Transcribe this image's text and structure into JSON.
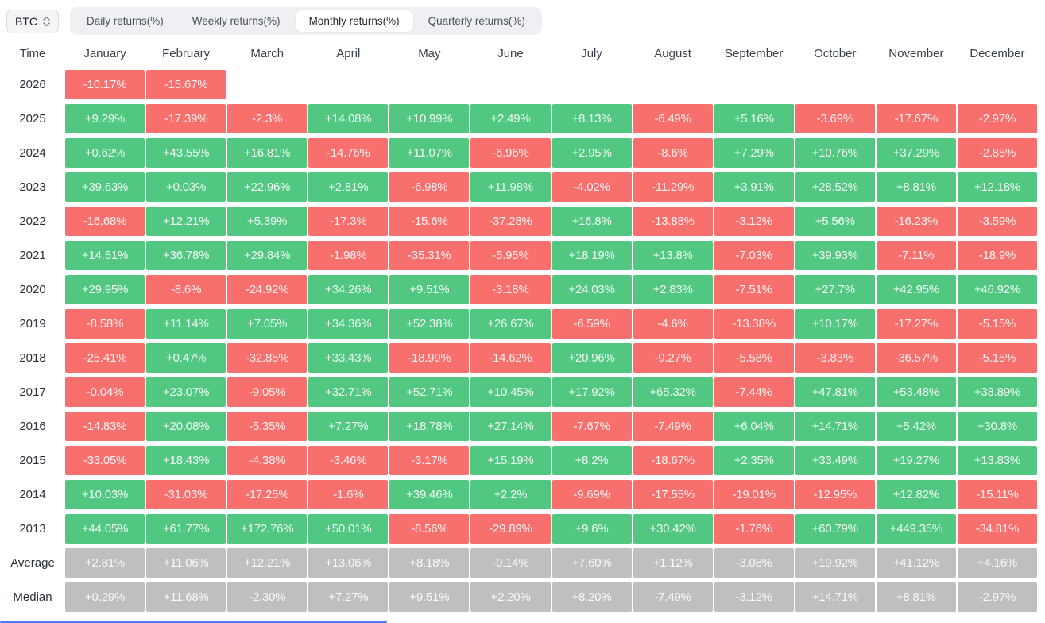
{
  "selector": {
    "label": "BTC",
    "icon": "updown-chevron-icon"
  },
  "tabs": [
    {
      "label": "Daily returns(%)",
      "active": false
    },
    {
      "label": "Weekly returns(%)",
      "active": false
    },
    {
      "label": "Monthly returns(%)",
      "active": true
    },
    {
      "label": "Quarterly returns(%)",
      "active": false
    }
  ],
  "colors": {
    "positive": "#52c782",
    "negative": "#f7706e",
    "summary": "#bfbfbf"
  },
  "table": {
    "time_header": "Time",
    "months": [
      "January",
      "February",
      "March",
      "April",
      "May",
      "June",
      "July",
      "August",
      "September",
      "October",
      "November",
      "December"
    ],
    "rows": [
      {
        "label": "2026",
        "type": "data",
        "values": [
          "-10.17%",
          "-15.67%",
          "",
          "",
          "",
          "",
          "",
          "",
          "",
          "",
          "",
          ""
        ]
      },
      {
        "label": "2025",
        "type": "data",
        "values": [
          "+9.29%",
          "-17.39%",
          "-2.3%",
          "+14.08%",
          "+10.99%",
          "+2.49%",
          "+8.13%",
          "-6.49%",
          "+5.16%",
          "-3.69%",
          "-17.67%",
          "-2.97%"
        ]
      },
      {
        "label": "2024",
        "type": "data",
        "values": [
          "+0.62%",
          "+43.55%",
          "+16.81%",
          "-14.76%",
          "+11.07%",
          "-6.96%",
          "+2.95%",
          "-8.6%",
          "+7.29%",
          "+10.76%",
          "+37.29%",
          "-2.85%"
        ]
      },
      {
        "label": "2023",
        "type": "data",
        "values": [
          "+39.63%",
          "+0.03%",
          "+22.96%",
          "+2.81%",
          "-6.98%",
          "+11.98%",
          "-4.02%",
          "-11.29%",
          "+3.91%",
          "+28.52%",
          "+8.81%",
          "+12.18%"
        ]
      },
      {
        "label": "2022",
        "type": "data",
        "values": [
          "-16.68%",
          "+12.21%",
          "+5.39%",
          "-17.3%",
          "-15.6%",
          "-37.28%",
          "+16.8%",
          "-13.88%",
          "-3.12%",
          "+5.56%",
          "-16.23%",
          "-3.59%"
        ]
      },
      {
        "label": "2021",
        "type": "data",
        "values": [
          "+14.51%",
          "+36.78%",
          "+29.84%",
          "-1.98%",
          "-35.31%",
          "-5.95%",
          "+18.19%",
          "+13.8%",
          "-7.03%",
          "+39.93%",
          "-7.11%",
          "-18.9%"
        ]
      },
      {
        "label": "2020",
        "type": "data",
        "values": [
          "+29.95%",
          "-8.6%",
          "-24.92%",
          "+34.26%",
          "+9.51%",
          "-3.18%",
          "+24.03%",
          "+2.83%",
          "-7.51%",
          "+27.7%",
          "+42.95%",
          "+46.92%"
        ]
      },
      {
        "label": "2019",
        "type": "data",
        "values": [
          "-8.58%",
          "+11.14%",
          "+7.05%",
          "+34.36%",
          "+52.38%",
          "+26.67%",
          "-6.59%",
          "-4.6%",
          "-13.38%",
          "+10.17%",
          "-17.27%",
          "-5.15%"
        ]
      },
      {
        "label": "2018",
        "type": "data",
        "values": [
          "-25.41%",
          "+0.47%",
          "-32.85%",
          "+33.43%",
          "-18.99%",
          "-14.62%",
          "+20.96%",
          "-9.27%",
          "-5.58%",
          "-3.83%",
          "-36.57%",
          "-5.15%"
        ]
      },
      {
        "label": "2017",
        "type": "data",
        "values": [
          "-0.04%",
          "+23.07%",
          "-9.05%",
          "+32.71%",
          "+52.71%",
          "+10.45%",
          "+17.92%",
          "+65.32%",
          "-7.44%",
          "+47.81%",
          "+53.48%",
          "+38.89%"
        ]
      },
      {
        "label": "2016",
        "type": "data",
        "values": [
          "-14.83%",
          "+20.08%",
          "-5.35%",
          "+7.27%",
          "+18.78%",
          "+27.14%",
          "-7.67%",
          "-7.49%",
          "+6.04%",
          "+14.71%",
          "+5.42%",
          "+30.8%"
        ]
      },
      {
        "label": "2015",
        "type": "data",
        "values": [
          "-33.05%",
          "+18.43%",
          "-4.38%",
          "-3.46%",
          "-3.17%",
          "+15.19%",
          "+8.2%",
          "-18.67%",
          "+2.35%",
          "+33.49%",
          "+19.27%",
          "+13.83%"
        ]
      },
      {
        "label": "2014",
        "type": "data",
        "values": [
          "+10.03%",
          "-31.03%",
          "-17.25%",
          "-1.6%",
          "+39.46%",
          "+2.2%",
          "-9.69%",
          "-17.55%",
          "-19.01%",
          "-12.95%",
          "+12.82%",
          "-15.11%"
        ]
      },
      {
        "label": "2013",
        "type": "data",
        "values": [
          "+44.05%",
          "+61.77%",
          "+172.76%",
          "+50.01%",
          "-8.56%",
          "-29.89%",
          "+9.6%",
          "+30.42%",
          "-1.76%",
          "+60.79%",
          "+449.35%",
          "-34.81%"
        ]
      },
      {
        "label": "Average",
        "type": "summary",
        "values": [
          "+2.81%",
          "+11.06%",
          "+12.21%",
          "+13.06%",
          "+8.18%",
          "-0.14%",
          "+7.60%",
          "+1.12%",
          "-3.08%",
          "+19.92%",
          "+41.12%",
          "+4.16%"
        ]
      },
      {
        "label": "Median",
        "type": "summary",
        "values": [
          "+0.29%",
          "+11.68%",
          "-2.30%",
          "+7.27%",
          "+9.51%",
          "+2.20%",
          "+8.20%",
          "-7.49%",
          "-3.12%",
          "+14.71%",
          "+8.81%",
          "-2.97%"
        ]
      }
    ]
  }
}
